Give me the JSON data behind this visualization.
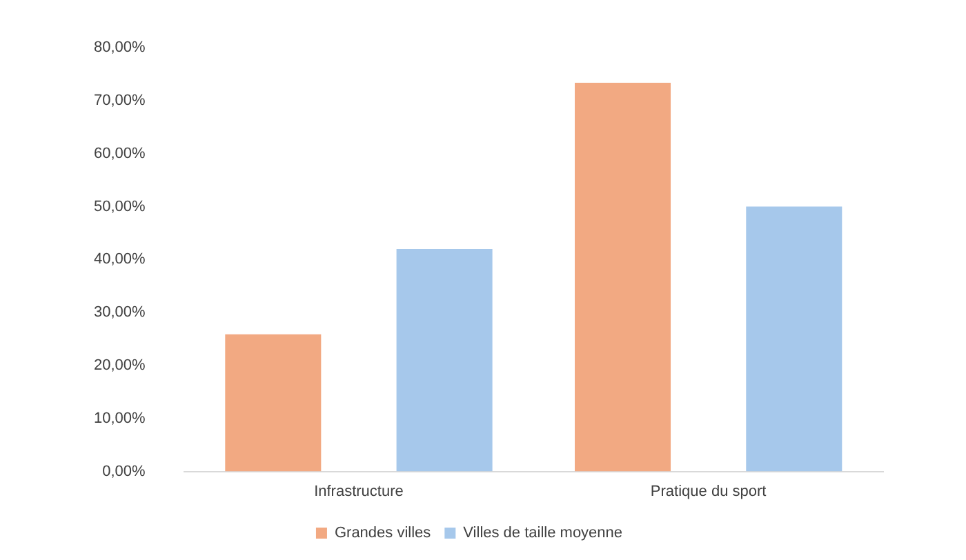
{
  "chart_data": {
    "type": "bar",
    "categories": [
      "Infrastructure",
      "Pratique du sport"
    ],
    "series": [
      {
        "name": "Grandes villes",
        "color": "#f2a982",
        "values": [
          25.9,
          73.4
        ]
      },
      {
        "name": "Villes de taille moyenne",
        "color": "#a6c8eb",
        "values": [
          42.0,
          50.0
        ]
      }
    ],
    "ylim": [
      0,
      80
    ],
    "yticks": [
      {
        "value": 0,
        "label": "0,00%"
      },
      {
        "value": 10,
        "label": "10,00%"
      },
      {
        "value": 20,
        "label": "20,00%"
      },
      {
        "value": 30,
        "label": "30,00%"
      },
      {
        "value": 40,
        "label": "40,00%"
      },
      {
        "value": 50,
        "label": "50,00%"
      },
      {
        "value": 60,
        "label": "60,00%"
      },
      {
        "value": 70,
        "label": "70,00%"
      },
      {
        "value": 80,
        "label": "80,00%"
      }
    ],
    "grid": false,
    "legend": "bottom"
  }
}
